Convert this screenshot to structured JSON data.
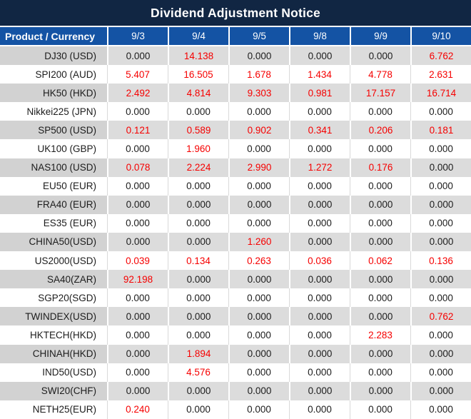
{
  "title": "Dividend Adjustment Notice",
  "colors": {
    "navy": "#112643",
    "blue": "#1453a4",
    "red": "#f60000"
  },
  "table": {
    "header": [
      "Product / Currency",
      "9/3",
      "9/4",
      "9/5",
      "9/8",
      "9/9",
      "9/10"
    ],
    "rows": [
      {
        "product": "DJ30 (USD)",
        "values": [
          "0.000",
          "14.138",
          "0.000",
          "0.000",
          "0.000",
          "6.762"
        ],
        "red": [
          false,
          true,
          false,
          false,
          false,
          true
        ]
      },
      {
        "product": "SPI200 (AUD)",
        "values": [
          "5.407",
          "16.505",
          "1.678",
          "1.434",
          "4.778",
          "2.631"
        ],
        "red": [
          true,
          true,
          true,
          true,
          true,
          true
        ]
      },
      {
        "product": "HK50 (HKD)",
        "values": [
          "2.492",
          "4.814",
          "9.303",
          "0.981",
          "17.157",
          "16.714"
        ],
        "red": [
          true,
          true,
          true,
          true,
          true,
          true
        ]
      },
      {
        "product": "Nikkei225 (JPN)",
        "values": [
          "0.000",
          "0.000",
          "0.000",
          "0.000",
          "0.000",
          "0.000"
        ],
        "red": [
          false,
          false,
          false,
          false,
          false,
          false
        ]
      },
      {
        "product": "SP500 (USD)",
        "values": [
          "0.121",
          "0.589",
          "0.902",
          "0.341",
          "0.206",
          "0.181"
        ],
        "red": [
          true,
          true,
          true,
          true,
          true,
          true
        ]
      },
      {
        "product": "UK100 (GBP)",
        "values": [
          "0.000",
          "1.960",
          "0.000",
          "0.000",
          "0.000",
          "0.000"
        ],
        "red": [
          false,
          true,
          false,
          false,
          false,
          false
        ]
      },
      {
        "product": "NAS100 (USD)",
        "values": [
          "0.078",
          "2.224",
          "2.990",
          "1.272",
          "0.176",
          "0.000"
        ],
        "red": [
          true,
          true,
          true,
          true,
          true,
          false
        ]
      },
      {
        "product": "EU50 (EUR)",
        "values": [
          "0.000",
          "0.000",
          "0.000",
          "0.000",
          "0.000",
          "0.000"
        ],
        "red": [
          false,
          false,
          false,
          false,
          false,
          false
        ]
      },
      {
        "product": "FRA40 (EUR)",
        "values": [
          "0.000",
          "0.000",
          "0.000",
          "0.000",
          "0.000",
          "0.000"
        ],
        "red": [
          false,
          false,
          false,
          false,
          false,
          false
        ]
      },
      {
        "product": "ES35 (EUR)",
        "values": [
          "0.000",
          "0.000",
          "0.000",
          "0.000",
          "0.000",
          "0.000"
        ],
        "red": [
          false,
          false,
          false,
          false,
          false,
          false
        ]
      },
      {
        "product": "CHINA50(USD)",
        "values": [
          "0.000",
          "0.000",
          "1.260",
          "0.000",
          "0.000",
          "0.000"
        ],
        "red": [
          false,
          false,
          true,
          false,
          false,
          false
        ]
      },
      {
        "product": "US2000(USD)",
        "values": [
          "0.039",
          "0.134",
          "0.263",
          "0.036",
          "0.062",
          "0.136"
        ],
        "red": [
          true,
          true,
          true,
          true,
          true,
          true
        ]
      },
      {
        "product": "SA40(ZAR)",
        "values": [
          "92.198",
          "0.000",
          "0.000",
          "0.000",
          "0.000",
          "0.000"
        ],
        "red": [
          true,
          false,
          false,
          false,
          false,
          false
        ]
      },
      {
        "product": "SGP20(SGD)",
        "values": [
          "0.000",
          "0.000",
          "0.000",
          "0.000",
          "0.000",
          "0.000"
        ],
        "red": [
          false,
          false,
          false,
          false,
          false,
          false
        ]
      },
      {
        "product": "TWINDEX(USD)",
        "values": [
          "0.000",
          "0.000",
          "0.000",
          "0.000",
          "0.000",
          "0.762"
        ],
        "red": [
          false,
          false,
          false,
          false,
          false,
          true
        ]
      },
      {
        "product": "HKTECH(HKD)",
        "values": [
          "0.000",
          "0.000",
          "0.000",
          "0.000",
          "2.283",
          "0.000"
        ],
        "red": [
          false,
          false,
          false,
          false,
          true,
          false
        ]
      },
      {
        "product": "CHINAH(HKD)",
        "values": [
          "0.000",
          "1.894",
          "0.000",
          "0.000",
          "0.000",
          "0.000"
        ],
        "red": [
          false,
          true,
          false,
          false,
          false,
          false
        ]
      },
      {
        "product": "IND50(USD)",
        "values": [
          "0.000",
          "4.576",
          "0.000",
          "0.000",
          "0.000",
          "0.000"
        ],
        "red": [
          false,
          true,
          false,
          false,
          false,
          false
        ]
      },
      {
        "product": "SWI20(CHF)",
        "values": [
          "0.000",
          "0.000",
          "0.000",
          "0.000",
          "0.000",
          "0.000"
        ],
        "red": [
          false,
          false,
          false,
          false,
          false,
          false
        ]
      },
      {
        "product": "NETH25(EUR)",
        "values": [
          "0.240",
          "0.000",
          "0.000",
          "0.000",
          "0.000",
          "0.000"
        ],
        "red": [
          true,
          false,
          false,
          false,
          false,
          false
        ]
      }
    ]
  }
}
